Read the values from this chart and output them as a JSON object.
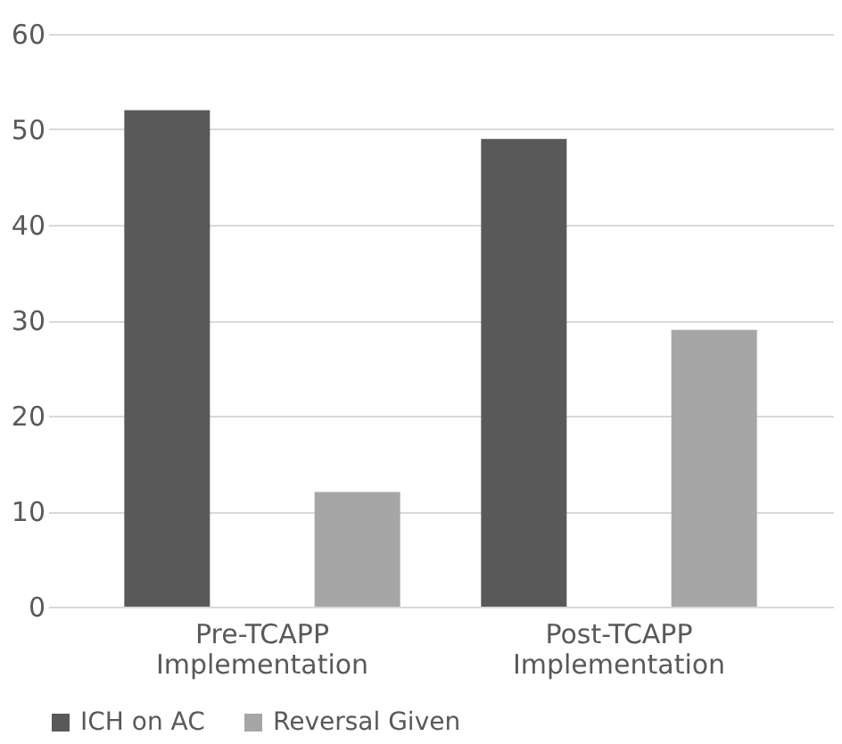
{
  "chart_data": {
    "type": "bar",
    "categories": [
      "Pre-TCAPP Implementation",
      "Post-TCAPP Implementation"
    ],
    "series": [
      {
        "name": "ICH on AC",
        "color": "#595959",
        "values": [
          52,
          49
        ]
      },
      {
        "name": "Reversal Given",
        "color": "#a6a6a6",
        "values": [
          12,
          29
        ]
      }
    ],
    "ylim": [
      0,
      60
    ],
    "yticks": [
      0,
      10,
      20,
      30,
      40,
      50,
      60
    ],
    "grid": "y",
    "legend": "bottom"
  }
}
